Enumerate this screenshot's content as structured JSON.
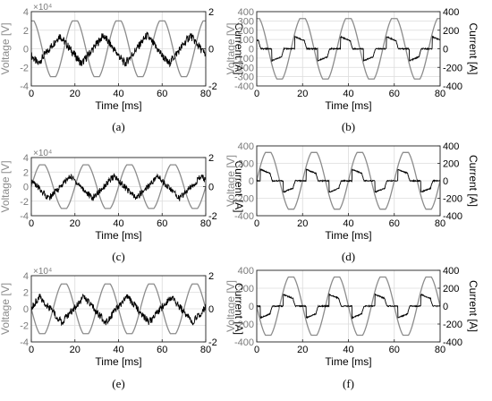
{
  "colors": {
    "voltage": "#8c8c8c",
    "current": "#000000",
    "grid": "#dcdcdc",
    "frame": "#222222"
  },
  "chart_data": [
    {
      "id": "a",
      "caption": "(a)",
      "type": "line",
      "xlabel": "Time [ms]",
      "ylabel_left": "Voltage [V]",
      "ylabel_right": "Current [A]",
      "exponent": "×10⁴",
      "xlim": [
        0,
        80
      ],
      "ylim_left": [
        -4,
        4
      ],
      "ylim_right": [
        -2,
        2
      ],
      "xticks": [
        0,
        20,
        40,
        60,
        80
      ],
      "yticks_left": [
        -4,
        -2,
        0,
        2,
        4
      ],
      "yticks_right": [
        -2,
        0,
        2
      ],
      "grid": true,
      "period_ms": 20,
      "voltage_amplitude": 3.0,
      "voltage_phase_ms": 15,
      "current_profile": "noisy",
      "current_phase_ms": 3,
      "current_amplitude": 0.9
    },
    {
      "id": "b",
      "caption": "(b)",
      "type": "line",
      "xlabel": "Time [ms]",
      "ylabel_left": "Voltage [V]",
      "ylabel_right": "Current [A]",
      "exponent": "",
      "xlim": [
        0,
        80
      ],
      "ylim_left": [
        -400,
        400
      ],
      "ylim_right": [
        -400,
        400
      ],
      "xticks": [
        0,
        20,
        40,
        60,
        80
      ],
      "yticks_left": [
        -400,
        -300,
        -200,
        -100,
        0,
        100,
        200,
        300,
        400
      ],
      "yticks_right": [
        -400,
        -200,
        0,
        200,
        400
      ],
      "grid": true,
      "period_ms": 20,
      "voltage_amplitude": 325,
      "voltage_phase_ms": 15,
      "current_profile": "pulse",
      "current_phase_ms": 15,
      "current_amplitude": 130
    },
    {
      "id": "c",
      "caption": "(c)",
      "type": "line",
      "xlabel": "Time [ms]",
      "ylabel_left": "Voltage [V]",
      "ylabel_right": "Current [A]",
      "exponent": "×10⁴",
      "xlim": [
        0,
        80
      ],
      "ylim_left": [
        -4,
        4
      ],
      "ylim_right": [
        -2,
        2
      ],
      "xticks": [
        0,
        20,
        40,
        60,
        80
      ],
      "yticks_left": [
        -4,
        -2,
        0,
        2,
        4
      ],
      "yticks_right": [
        -2,
        0,
        2
      ],
      "grid": true,
      "period_ms": 20,
      "voltage_amplitude": 3.0,
      "voltage_phase_ms": 0,
      "current_profile": "noisy",
      "current_phase_ms": 8,
      "current_amplitude": 0.9
    },
    {
      "id": "d",
      "caption": "(d)",
      "type": "line",
      "xlabel": "Time [ms]",
      "ylabel_left": "Voltage [V]",
      "ylabel_right": "Current [A]",
      "exponent": "",
      "xlim": [
        0,
        80
      ],
      "ylim_left": [
        -400,
        400
      ],
      "ylim_right": [
        -400,
        400
      ],
      "xticks": [
        0,
        20,
        40,
        60,
        80
      ],
      "yticks_left": [
        -400,
        -200,
        0,
        200,
        400
      ],
      "yticks_right": [
        -400,
        -200,
        0,
        200,
        400
      ],
      "grid": true,
      "period_ms": 20,
      "voltage_amplitude": 325,
      "voltage_phase_ms": 0,
      "current_profile": "pulse",
      "current_phase_ms": 0,
      "current_amplitude": 130
    },
    {
      "id": "e",
      "caption": "(e)",
      "type": "line",
      "xlabel": "Time [ms]",
      "ylabel_left": "Voltage [V]",
      "ylabel_right": "Current [A]",
      "exponent": "×10⁴",
      "xlim": [
        0,
        80
      ],
      "ylim_left": [
        -4,
        4
      ],
      "ylim_right": [
        -2,
        2
      ],
      "xticks": [
        0,
        20,
        40,
        60,
        80
      ],
      "yticks_left": [
        -4,
        -2,
        0,
        2,
        4
      ],
      "yticks_right": [
        -2,
        0,
        2
      ],
      "grid": true,
      "period_ms": 20,
      "voltage_amplitude": 3.0,
      "voltage_phase_ms": 10,
      "current_profile": "noisy",
      "current_phase_ms": 14,
      "current_amplitude": 0.9
    },
    {
      "id": "f",
      "caption": "(f)",
      "type": "line",
      "xlabel": "Time [ms]",
      "ylabel_left": "Voltage [V]",
      "ylabel_right": "Current [A]",
      "exponent": "",
      "xlim": [
        0,
        80
      ],
      "ylim_left": [
        -400,
        400
      ],
      "ylim_right": [
        -400,
        400
      ],
      "xticks": [
        0,
        20,
        40,
        60,
        80
      ],
      "yticks_left": [
        -400,
        -200,
        0,
        200,
        400
      ],
      "yticks_right": [
        -400,
        -200,
        0,
        200,
        400
      ],
      "grid": true,
      "period_ms": 20,
      "voltage_amplitude": 325,
      "voltage_phase_ms": 10,
      "current_profile": "pulse",
      "current_phase_ms": 10,
      "current_amplitude": 130
    }
  ]
}
